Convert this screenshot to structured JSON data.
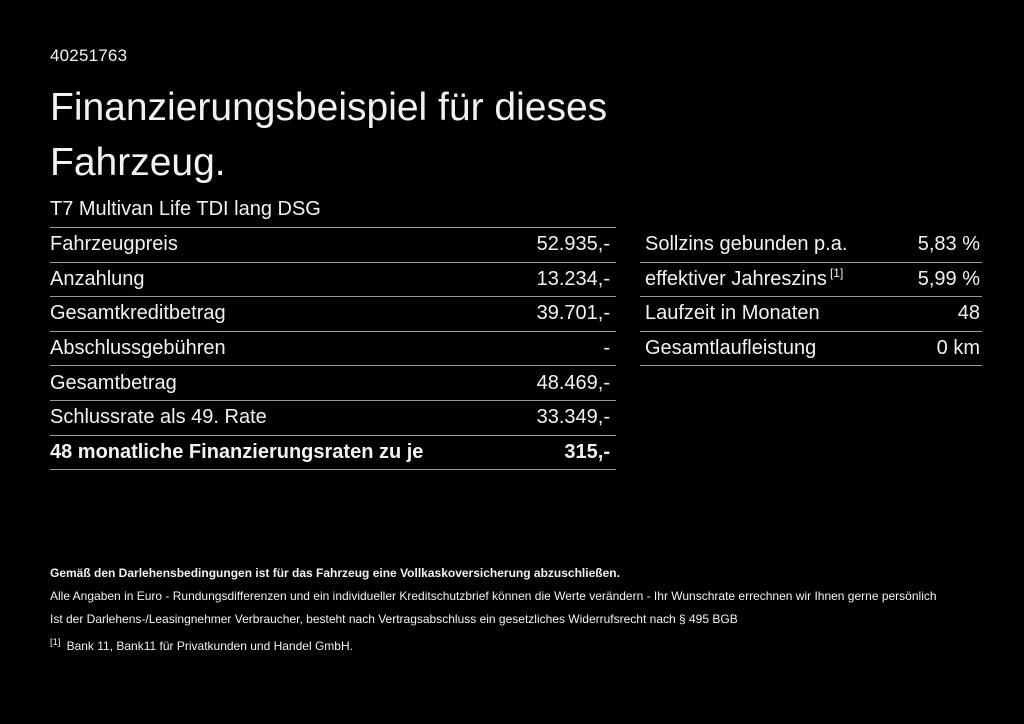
{
  "header": {
    "id_number": "40251763",
    "title_line1": "Finanzierungsbeispiel für dieses",
    "title_line2": "Fahrzeug.",
    "subtitle": "T7 Multivan Life TDI lang DSG"
  },
  "left_table": {
    "rows": [
      {
        "label": "Fahrzeugpreis",
        "value": "52.935,-"
      },
      {
        "label": "Anzahlung",
        "value": "13.234,-"
      },
      {
        "label": "Gesamtkreditbetrag",
        "value": "39.701,-"
      },
      {
        "label": "Abschlussgebühren",
        "value": "-"
      },
      {
        "label": "Gesamtbetrag",
        "value": "48.469,-"
      },
      {
        "label": "Schlussrate als 49. Rate",
        "value": "33.349,-"
      },
      {
        "label": "48 monatliche Finanzierungsraten zu je",
        "value": "315,-"
      }
    ]
  },
  "right_table": {
    "rows": [
      {
        "label": "Sollzins gebunden p.a.",
        "sup": "",
        "value": "5,83 %"
      },
      {
        "label": "effektiver Jahreszins",
        "sup": "[1]",
        "value": "5,99 %"
      },
      {
        "label": "Laufzeit in Monaten",
        "sup": "",
        "value": "48"
      },
      {
        "label": "Gesamtlaufleistung",
        "sup": "",
        "value": "0 km"
      }
    ]
  },
  "disclaimer": {
    "bold_line": "Gemäß den Darlehensbedingungen ist für das Fahrzeug eine Vollkaskoversicherung abzuschließen.",
    "line2": "Alle Angaben in Euro - Rundungsdifferenzen und ein individueller Kreditschutzbrief können die Werte verändern - Ihr Wunschrate errechnen wir Ihnen gerne persönlich",
    "line3": "Ist der Darlehens-/Leasingnehmer Verbraucher, besteht nach Vertragsabschluss ein gesetzliches Widerrufsrecht nach § 495 BGB",
    "footnote_marker": "[1]",
    "footnote_text": "Bank 11, Bank11 für Privatkunden und Handel GmbH."
  },
  "colors": {
    "background": "#000000",
    "text": "#f2f2f2",
    "separator": "#999999"
  }
}
